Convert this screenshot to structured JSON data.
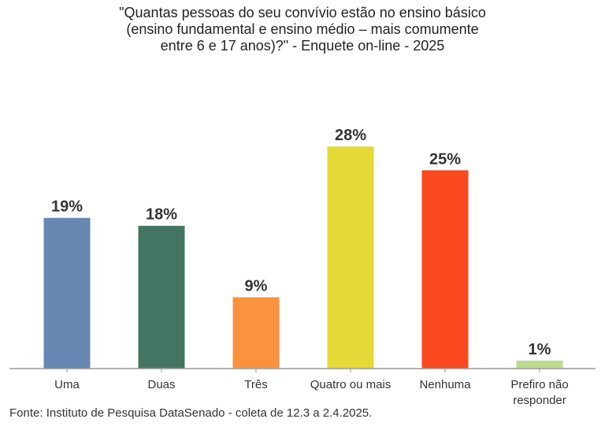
{
  "chart_data": {
    "type": "bar",
    "title_lines": [
      "\"Quantas pessoas do seu convívio estão no ensino básico",
      "(ensino fundamental e ensino médio – mais comumente",
      "entre 6 e 17 anos)?\" - Enquete on-line - 2025"
    ],
    "categories": [
      "Uma",
      "Duas",
      "Três",
      "Quatro ou mais",
      "Nenhuma",
      "Prefiro não responder"
    ],
    "category_lines": [
      [
        "Uma"
      ],
      [
        "Duas"
      ],
      [
        "Três"
      ],
      [
        "Quatro ou mais"
      ],
      [
        "Nenhuma"
      ],
      [
        "Prefiro não",
        "responder"
      ]
    ],
    "values": [
      19,
      18,
      9,
      28,
      25,
      1
    ],
    "data_labels": [
      "19%",
      "18%",
      "9%",
      "28%",
      "25%",
      "1%"
    ],
    "colors": [
      "#6688b2",
      "#447562",
      "#fb923e",
      "#e4d936",
      "#fb4920",
      "#b8de8e"
    ],
    "xlabel": "",
    "ylabel": "",
    "ylim": [
      0,
      30
    ],
    "grid": false,
    "legend": "none"
  },
  "source": "Fonte: Instituto de Pesquisa DataSenado - coleta de 12.3 a 2.4.2025."
}
